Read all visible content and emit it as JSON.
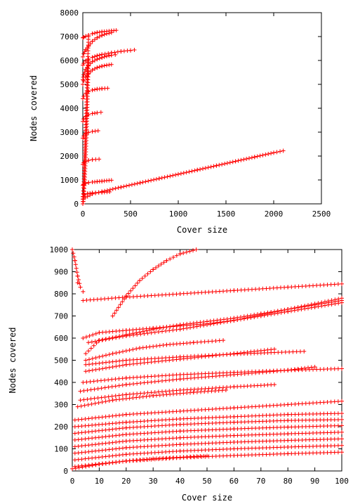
{
  "chart_data": [
    {
      "type": "scatter",
      "xlabel": "Cover size",
      "ylabel": "Nodes covered",
      "xlim": [
        0,
        2500
      ],
      "ylim": [
        0,
        8000
      ],
      "x_ticks": [
        0,
        500,
        1000,
        1500,
        2000,
        2500
      ],
      "y_ticks": [
        0,
        1000,
        2000,
        3000,
        4000,
        5000,
        6000,
        7000,
        8000
      ],
      "x_tick_labels": [
        "0",
        "500",
        "1000",
        "1500",
        "2000",
        "2500"
      ],
      "y_tick_labels": [
        "0",
        "1000",
        "2000",
        "3000",
        "4000",
        "5000",
        "6000",
        "7000",
        "8000"
      ],
      "grid": false,
      "marker": "+",
      "color": "#ff0000",
      "curves": [
        {
          "x": [
            0,
            10,
            30,
            60,
            100,
            150,
            200,
            250,
            300,
            350
          ],
          "y": [
            6950,
            6970,
            7010,
            7060,
            7120,
            7170,
            7200,
            7220,
            7240,
            7260
          ]
        },
        {
          "x": [
            0,
            10,
            30,
            60,
            100,
            150,
            200,
            250,
            300
          ],
          "y": [
            6150,
            6280,
            6450,
            6600,
            6800,
            6950,
            7050,
            7120,
            7160
          ]
        },
        {
          "x": [
            0,
            10,
            30,
            60,
            100,
            150,
            200,
            300,
            400,
            500,
            540
          ],
          "y": [
            5800,
            5880,
            5980,
            6060,
            6130,
            6200,
            6250,
            6320,
            6380,
            6420,
            6440
          ]
        },
        {
          "x": [
            0,
            10,
            30,
            60,
            100,
            150,
            200,
            250,
            300,
            340
          ],
          "y": [
            5200,
            5400,
            5620,
            5800,
            5950,
            6050,
            6120,
            6180,
            6220,
            6240
          ]
        },
        {
          "x": [
            0,
            10,
            30,
            60,
            100,
            150,
            200,
            250,
            300
          ],
          "y": [
            5000,
            5150,
            5300,
            5450,
            5600,
            5700,
            5760,
            5800,
            5830
          ]
        },
        {
          "x": [
            0,
            10,
            30,
            60,
            100,
            150,
            200,
            260
          ],
          "y": [
            4400,
            4500,
            4620,
            4700,
            4760,
            4800,
            4820,
            4840
          ]
        },
        {
          "x": [
            0,
            10,
            30,
            60,
            100,
            150,
            190
          ],
          "y": [
            3450,
            3550,
            3650,
            3730,
            3780,
            3810,
            3830
          ]
        },
        {
          "x": [
            0,
            10,
            30,
            60,
            100,
            160
          ],
          "y": [
            2750,
            2840,
            2930,
            2990,
            3030,
            3060
          ]
        },
        {
          "x": [
            0,
            10,
            30,
            60,
            100,
            170
          ],
          "y": [
            1650,
            1720,
            1780,
            1820,
            1850,
            1870
          ]
        },
        {
          "x": [
            0,
            10,
            30,
            60,
            100,
            150,
            200,
            250,
            300
          ],
          "y": [
            780,
            820,
            860,
            890,
            910,
            930,
            950,
            970,
            990
          ]
        },
        {
          "x": [
            0,
            20,
            50,
            100,
            200,
            280
          ],
          "y": [
            300,
            380,
            430,
            460,
            480,
            500
          ]
        },
        {
          "x": [
            0,
            100,
            200,
            400,
            600,
            800,
            1000,
            1200,
            1400,
            1600,
            1800,
            2000,
            2100
          ],
          "y": [
            200,
            420,
            510,
            700,
            880,
            1060,
            1240,
            1420,
            1600,
            1780,
            1960,
            2140,
            2220
          ]
        },
        {
          "x": [
            0,
            5,
            10,
            20,
            40,
            60
          ],
          "y": [
            0,
            100,
            400,
            1000,
            3000,
            6000
          ]
        },
        {
          "x": [
            0,
            5,
            10,
            20,
            40,
            60
          ],
          "y": [
            0,
            300,
            800,
            2000,
            4500,
            7000
          ]
        }
      ]
    },
    {
      "type": "scatter",
      "xlabel": "Cover size",
      "ylabel": "Nodes covered",
      "xlim": [
        0,
        100
      ],
      "ylim": [
        0,
        1000
      ],
      "x_ticks": [
        0,
        10,
        20,
        30,
        40,
        50,
        60,
        70,
        80,
        90,
        100
      ],
      "y_ticks": [
        0,
        100,
        200,
        300,
        400,
        500,
        600,
        700,
        800,
        900,
        1000
      ],
      "x_tick_labels": [
        "0",
        "10",
        "20",
        "30",
        "40",
        "50",
        "60",
        "70",
        "80",
        "90",
        "100"
      ],
      "y_tick_labels": [
        "0",
        "100",
        "200",
        "300",
        "400",
        "500",
        "600",
        "700",
        "800",
        "900",
        "1000"
      ],
      "grid": false,
      "marker": "+",
      "color": "#ff0000",
      "curves": [
        {
          "x": [
            0,
            1,
            2,
            3
          ],
          "y": [
            1000,
            950,
            880,
            830
          ]
        },
        {
          "x": [
            2,
            3,
            4
          ],
          "y": [
            850,
            830,
            810
          ]
        },
        {
          "x": [
            15,
            20,
            25,
            30,
            35,
            40,
            46
          ],
          "y": [
            700,
            790,
            860,
            910,
            950,
            980,
            1000
          ]
        },
        {
          "x": [
            4,
            20,
            40,
            60,
            80,
            100
          ],
          "y": [
            770,
            785,
            800,
            815,
            830,
            845
          ]
        },
        {
          "x": [
            4,
            10,
            20,
            30,
            40,
            50,
            60,
            70,
            80,
            90,
            100
          ],
          "y": [
            600,
            625,
            635,
            645,
            655,
            665,
            680,
            700,
            720,
            740,
            760
          ]
        },
        {
          "x": [
            6,
            20,
            40,
            60,
            80,
            100
          ],
          "y": [
            580,
            610,
            640,
            680,
            730,
            780
          ]
        },
        {
          "x": [
            5,
            10,
            20,
            30,
            40,
            50,
            60,
            70,
            80,
            90,
            100
          ],
          "y": [
            530,
            590,
            615,
            640,
            660,
            675,
            690,
            710,
            730,
            750,
            770
          ]
        },
        {
          "x": [
            5,
            15,
            25,
            35,
            45,
            56
          ],
          "y": [
            500,
            530,
            555,
            570,
            580,
            590
          ]
        },
        {
          "x": [
            5,
            20,
            40,
            60,
            75,
            86
          ],
          "y": [
            480,
            500,
            515,
            528,
            535,
            540
          ]
        },
        {
          "x": [
            5,
            20,
            40,
            60,
            75
          ],
          "y": [
            450,
            480,
            505,
            530,
            550
          ]
        },
        {
          "x": [
            4,
            20,
            40,
            60,
            80,
            100
          ],
          "y": [
            400,
            420,
            435,
            445,
            455,
            462
          ]
        },
        {
          "x": [
            3,
            20,
            40,
            60,
            80,
            90
          ],
          "y": [
            360,
            390,
            415,
            435,
            455,
            470
          ]
        },
        {
          "x": [
            3,
            20,
            40,
            60,
            75
          ],
          "y": [
            320,
            345,
            365,
            380,
            390
          ]
        },
        {
          "x": [
            2,
            15,
            30,
            45,
            57
          ],
          "y": [
            290,
            320,
            340,
            355,
            365
          ]
        },
        {
          "x": [
            1,
            20,
            40,
            60,
            80,
            100
          ],
          "y": [
            230,
            255,
            270,
            285,
            300,
            315
          ]
        },
        {
          "x": [
            1,
            20,
            40,
            60,
            80,
            100
          ],
          "y": [
            200,
            220,
            235,
            245,
            255,
            260
          ]
        },
        {
          "x": [
            1,
            20,
            40,
            60,
            80,
            100
          ],
          "y": [
            170,
            195,
            210,
            220,
            228,
            232
          ]
        },
        {
          "x": [
            1,
            20,
            40,
            60,
            80,
            100
          ],
          "y": [
            140,
            165,
            180,
            190,
            198,
            205
          ]
        },
        {
          "x": [
            1,
            20,
            40,
            60,
            80,
            100
          ],
          "y": [
            110,
            135,
            150,
            160,
            168,
            175
          ]
        },
        {
          "x": [
            1,
            20,
            40,
            60,
            80,
            100
          ],
          "y": [
            80,
            105,
            120,
            130,
            138,
            145
          ]
        },
        {
          "x": [
            1,
            20,
            40,
            60,
            80,
            100
          ],
          "y": [
            50,
            75,
            90,
            100,
            108,
            115
          ]
        },
        {
          "x": [
            1,
            20,
            40,
            60,
            80,
            100
          ],
          "y": [
            20,
            45,
            60,
            70,
            78,
            85
          ]
        },
        {
          "x": [
            0,
            10,
            20,
            30,
            40,
            50
          ],
          "y": [
            10,
            30,
            45,
            55,
            62,
            68
          ]
        }
      ]
    }
  ]
}
